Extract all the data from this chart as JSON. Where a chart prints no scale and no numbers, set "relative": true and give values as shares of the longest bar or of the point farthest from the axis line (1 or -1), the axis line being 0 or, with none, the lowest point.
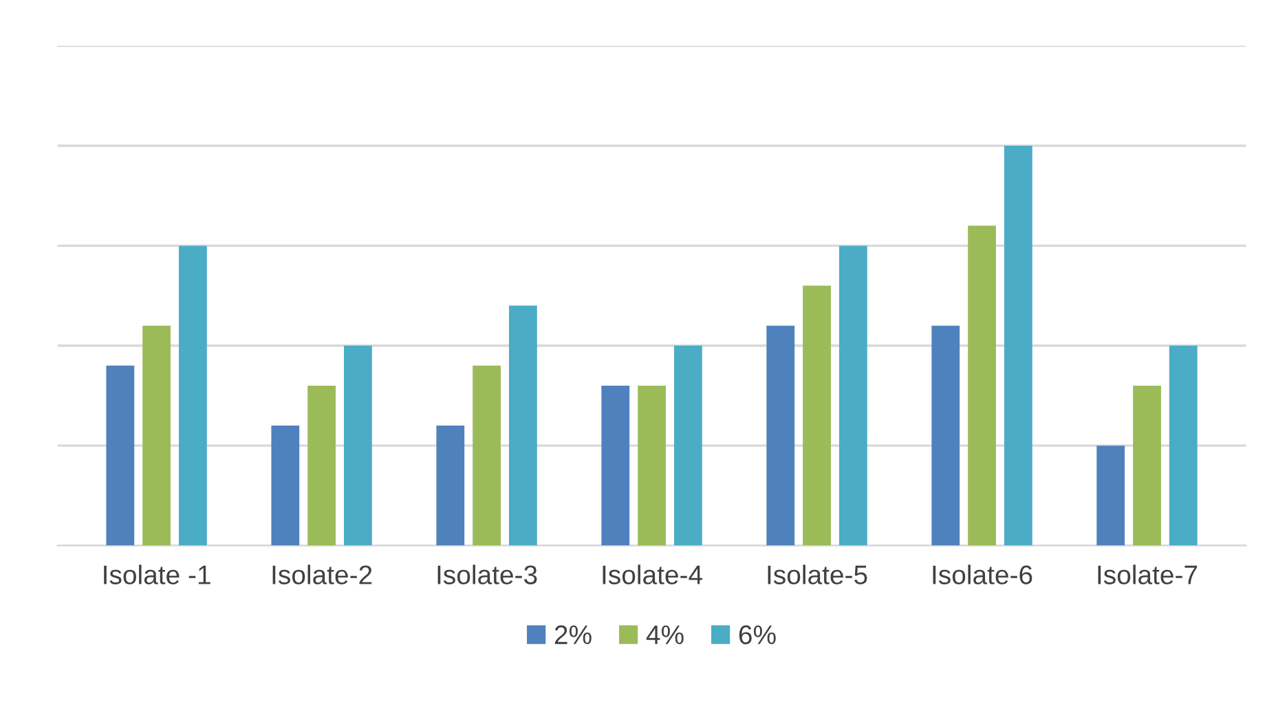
{
  "chart_data": {
    "type": "bar",
    "relative": true,
    "categories": [
      "Isolate -1",
      "Isolate-2",
      "Isolate-3",
      "Isolate-4",
      "Isolate-5",
      "Isolate-6",
      "Isolate-7"
    ],
    "series": [
      {
        "name": "2%",
        "color": "#4f81bd",
        "values": [
          0.45,
          0.3,
          0.3,
          0.4,
          0.55,
          0.55,
          0.25
        ]
      },
      {
        "name": "4%",
        "color": "#9bbb59",
        "values": [
          0.55,
          0.4,
          0.45,
          0.4,
          0.65,
          0.8,
          0.4
        ]
      },
      {
        "name": "6%",
        "color": "#4bacc6",
        "values": [
          0.75,
          0.5,
          0.6,
          0.5,
          0.75,
          1.0,
          0.5
        ]
      }
    ],
    "grid": "y",
    "legend": "bottom"
  }
}
